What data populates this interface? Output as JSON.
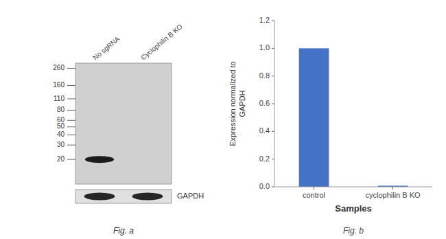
{
  "chart_data": [
    {
      "type": "blot",
      "categories": [
        "No sgRNA",
        "Cyclophilin B KO"
      ],
      "yticks": [
        260,
        160,
        110,
        80,
        60,
        50,
        40,
        30,
        20
      ],
      "ylim": [
        10,
        300
      ],
      "log": "y",
      "color": "#d0d0d0",
      "annotations": [
        "GAPDH",
        "Fig. a"
      ]
    },
    {
      "type": "bar",
      "categories": [
        "control",
        "cyclophilin B KO"
      ],
      "values": [
        1.0,
        0.008
      ],
      "color": "#4472c4",
      "ylabel": "Expression normalized to\nGAPDH",
      "xlabel": "Samples",
      "ylim": [
        0,
        1.2
      ],
      "yticks": [
        {
          "value": 0,
          "label": "0.0"
        },
        0.2,
        0.4,
        0.6,
        0.8,
        {
          "value": 1.0,
          "label": "1.0"
        },
        1.2
      ],
      "grid": false,
      "annotations": [
        "Fig. b"
      ]
    }
  ]
}
